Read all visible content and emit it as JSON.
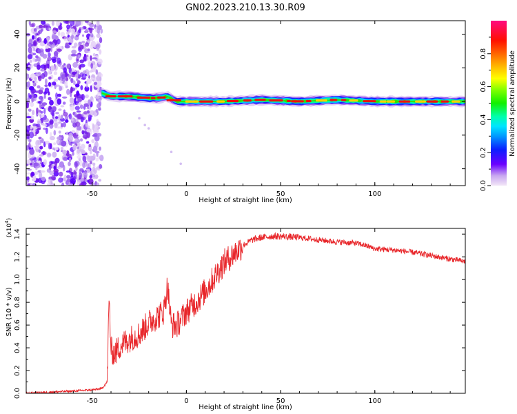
{
  "title": "GN02.2023.210.13.30.R09",
  "colors": {
    "snr_line": "#e8262a",
    "axis": "#000000",
    "scatter_purple": "#7a1fe0"
  },
  "colorbar": {
    "label": "Normalized spectral amplitude",
    "ticks": [
      "0.0",
      "0.2",
      "0.4",
      "0.6",
      "0.8"
    ],
    "tick_values": [
      0.0,
      0.2,
      0.4,
      0.6,
      0.8
    ],
    "range": [
      0.0,
      1.0
    ],
    "colormap": "gist_ncar"
  },
  "chart_data": [
    {
      "type": "heatmap",
      "name": "spectrogram",
      "xlabel": "Height of straight line (km)",
      "ylabel": "Frequency (Hz)",
      "xlim": [
        -85,
        148
      ],
      "ylim": [
        -50,
        48
      ],
      "xticks": [
        -50,
        0,
        50,
        100
      ],
      "xtick_labels": [
        "-50",
        "0",
        "50",
        "100"
      ],
      "yticks": [
        -40,
        -20,
        0,
        20,
        40
      ],
      "ytick_labels": [
        "-40",
        "-20",
        "0",
        "20",
        "40"
      ],
      "noise_region": {
        "x": [
          -85,
          -45
        ],
        "y": [
          -50,
          48
        ]
      },
      "ridge": {
        "x": [
          -45,
          -40,
          -30,
          -20,
          -15,
          -10,
          -7,
          -5,
          0,
          20,
          40,
          60,
          80,
          100,
          120,
          148
        ],
        "y": [
          5,
          3,
          3,
          2,
          2,
          3,
          1,
          0,
          0,
          0,
          1,
          0,
          1,
          0,
          0,
          0
        ]
      },
      "tail_points": {
        "x": [
          -25,
          -22,
          -20,
          -8,
          -3
        ],
        "y": [
          -10,
          -14,
          -16,
          -30,
          -37
        ]
      }
    },
    {
      "type": "line",
      "name": "snr",
      "xlabel": "Height of straight line (km)",
      "ylabel": "SNR (10 * v/v)",
      "y_multiplier": "(x10",
      "y_multiplier_exp": "4",
      "y_multiplier_close": ")",
      "xlim": [
        -85,
        148
      ],
      "ylim": [
        0.0,
        1.45
      ],
      "xticks": [
        -50,
        0,
        50,
        100
      ],
      "xtick_labels": [
        "-50",
        "0",
        "50",
        "100"
      ],
      "yticks": [
        0.0,
        0.2,
        0.4,
        0.6,
        0.8,
        1.0,
        1.2,
        1.4
      ],
      "ytick_labels": [
        "0.0",
        "0.2",
        "0.4",
        "0.6",
        "0.8",
        "1.0",
        "1.2",
        "1.4"
      ],
      "series": [
        {
          "x": [
            -85,
            -60,
            -50,
            -45,
            -42,
            -41,
            -40,
            -38,
            -35,
            -30,
            -25,
            -20,
            -15,
            -12,
            -10,
            -8,
            -5,
            0,
            5,
            10,
            20,
            30,
            35,
            40,
            45,
            50,
            60,
            70,
            80,
            90,
            95,
            100,
            110,
            120,
            130,
            140,
            148
          ],
          "y": [
            0.0,
            0.02,
            0.03,
            0.04,
            0.1,
            0.85,
            0.38,
            0.35,
            0.42,
            0.48,
            0.52,
            0.62,
            0.68,
            0.72,
            0.95,
            0.6,
            0.6,
            0.72,
            0.8,
            0.9,
            1.15,
            1.3,
            1.35,
            1.37,
            1.38,
            1.38,
            1.37,
            1.35,
            1.33,
            1.32,
            1.3,
            1.27,
            1.26,
            1.24,
            1.21,
            1.18,
            1.16
          ]
        }
      ]
    }
  ]
}
